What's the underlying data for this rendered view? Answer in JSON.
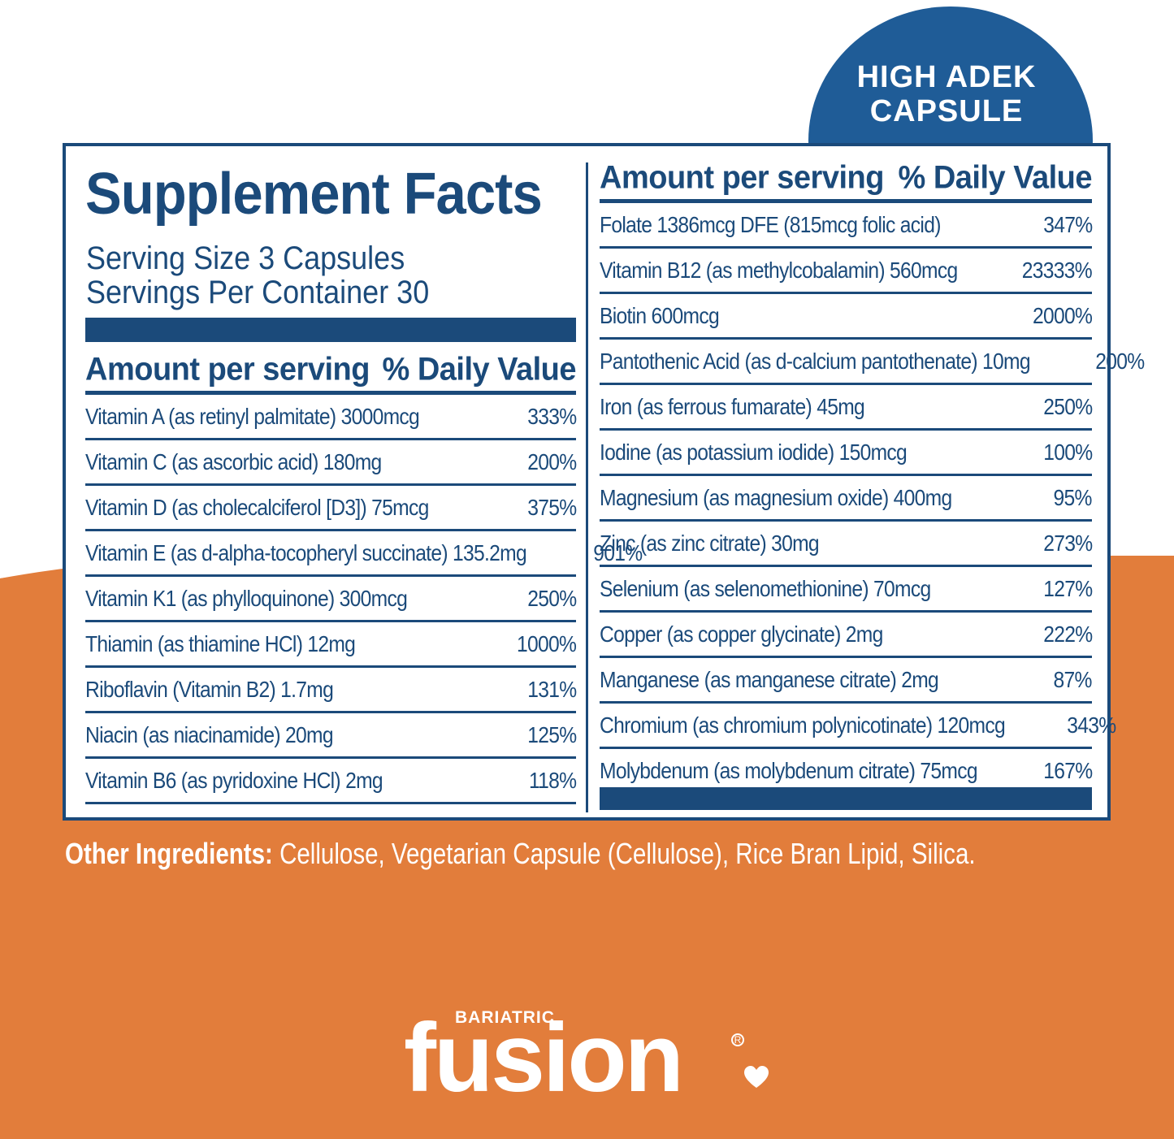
{
  "colors": {
    "navy": "#1b4a7a",
    "badge": "#1f5c97",
    "orange": "#e27d3b",
    "white": "#ffffff"
  },
  "badge": {
    "line1": "HIGH ADEK",
    "line2": "CAPSULE"
  },
  "facts": {
    "title": "Supplement Facts",
    "serving_size": "Serving Size 3 Capsules",
    "servings_per_container": "Servings Per Container 30",
    "header_amount": "Amount per serving",
    "header_dv": "% Daily Value"
  },
  "left_rows": [
    {
      "name": "Vitamin A (as retinyl palmitate) 3000mcg",
      "dv": "333%"
    },
    {
      "name": "Vitamin C (as ascorbic acid) 180mg",
      "dv": "200%"
    },
    {
      "name": "Vitamin D (as cholecalciferol [D3]) 75mcg",
      "dv": "375%"
    },
    {
      "name": "Vitamin E (as d-alpha-tocopheryl succinate) 135.2mg",
      "dv": "901%"
    },
    {
      "name": "Vitamin K1 (as phylloquinone) 300mcg",
      "dv": "250%"
    },
    {
      "name": "Thiamin (as thiamine HCl) 12mg",
      "dv": "1000%"
    },
    {
      "name": "Riboflavin (Vitamin B2) 1.7mg",
      "dv": "131%"
    },
    {
      "name": "Niacin (as niacinamide) 20mg",
      "dv": "125%"
    },
    {
      "name": "Vitamin B6 (as pyridoxine HCl) 2mg",
      "dv": "118%"
    }
  ],
  "right_rows": [
    {
      "name": "Folate 1386mcg DFE (815mcg folic acid)",
      "dv": "347%"
    },
    {
      "name": "Vitamin B12 (as methylcobalamin) 560mcg",
      "dv": "23333%"
    },
    {
      "name": "Biotin 600mcg",
      "dv": "2000%"
    },
    {
      "name": "Pantothenic Acid (as d-calcium pantothenate) 10mg",
      "dv": "200%"
    },
    {
      "name": "Iron (as ferrous fumarate) 45mg",
      "dv": "250%"
    },
    {
      "name": "Iodine (as potassium iodide) 150mcg",
      "dv": "100%"
    },
    {
      "name": "Magnesium (as magnesium oxide) 400mg",
      "dv": "95%"
    },
    {
      "name": "Zinc (as zinc citrate) 30mg",
      "dv": "273%"
    },
    {
      "name": "Selenium (as selenomethionine) 70mcg",
      "dv": "127%"
    },
    {
      "name": "Copper (as copper glycinate) 2mg",
      "dv": "222%"
    },
    {
      "name": "Manganese (as manganese citrate) 2mg",
      "dv": "87%"
    },
    {
      "name": "Chromium (as chromium polynicotinate) 120mcg",
      "dv": "343%"
    },
    {
      "name": "Molybdenum (as molybdenum citrate) 75mcg",
      "dv": "167%"
    }
  ],
  "other_ingredients": {
    "label": "Other Ingredients:",
    "text": " Cellulose, Vegetarian Capsule (Cellulose), Rice Bran Lipid, Silica."
  },
  "brand": {
    "small": "BARIATRIC",
    "main": "fusion",
    "reg": "R"
  }
}
